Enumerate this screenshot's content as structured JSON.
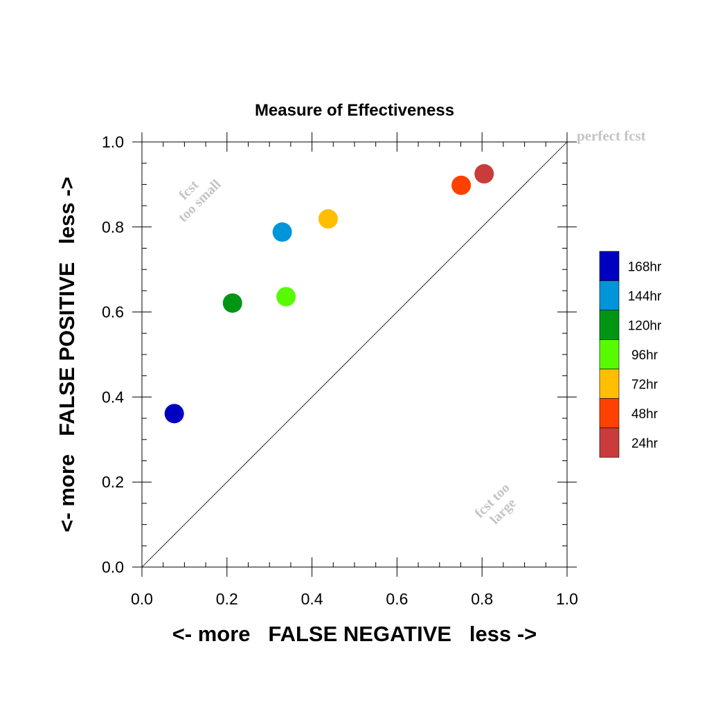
{
  "chart_data": {
    "type": "scatter",
    "title": "Measure of Effectiveness",
    "xlabel": "<- more   FALSE NEGATIVE   less ->",
    "ylabel": "<- more   FALSE POSITIVE   less ->",
    "xlim": [
      0.0,
      1.0
    ],
    "ylim": [
      0.0,
      1.0
    ],
    "xticks": [
      "0.0",
      "0.2",
      "0.4",
      "0.6",
      "0.8",
      "1.0"
    ],
    "yticks": [
      "0.0",
      "0.2",
      "0.4",
      "0.6",
      "0.8",
      "1.0"
    ],
    "grid": false,
    "diagonal": "perfect forecast line from (0,0) to (1,1)",
    "annotations": {
      "perfect": "perfect fcst",
      "small_line1": "fcst",
      "small_line2": "too small",
      "large_line1": "fcst too",
      "large_line2": "large"
    },
    "legend_placement": "right",
    "series": [
      {
        "name": "168hr",
        "color": "#0000c0",
        "x": 0.076,
        "y": 0.361
      },
      {
        "name": "144hr",
        "color": "#0095d8",
        "x": 0.33,
        "y": 0.788
      },
      {
        "name": "120hr",
        "color": "#009614",
        "x": 0.213,
        "y": 0.621
      },
      {
        "name": "96hr",
        "color": "#58fa00",
        "x": 0.339,
        "y": 0.636
      },
      {
        "name": "72hr",
        "color": "#ffbe00",
        "x": 0.438,
        "y": 0.819
      },
      {
        "name": "48hr",
        "color": "#ff4100",
        "x": 0.751,
        "y": 0.898
      },
      {
        "name": "24hr",
        "color": "#c83c3c",
        "x": 0.805,
        "y": 0.925
      }
    ]
  }
}
